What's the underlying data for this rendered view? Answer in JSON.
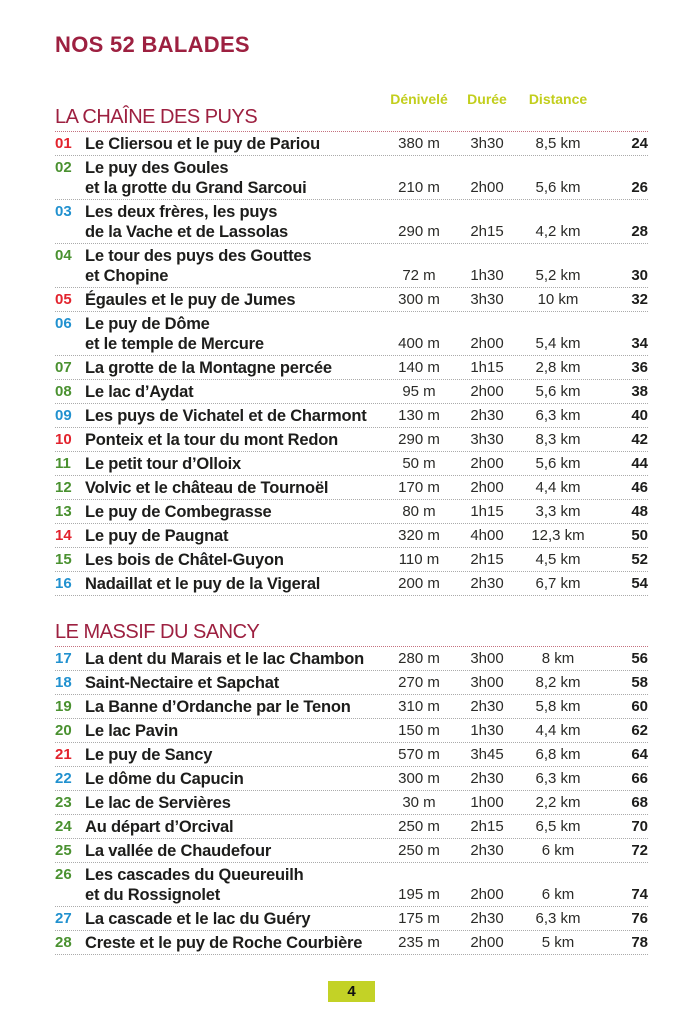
{
  "page": {
    "title": "NOS 52 BALADES",
    "footer_page_number": "4"
  },
  "columns": {
    "denivele": "Dénivelé",
    "duree": "Durée",
    "distance": "Distance"
  },
  "colors": {
    "maroon": "#9D2040",
    "lime": "#C2CE1C",
    "badge_bg": "#C3D226",
    "red": "#E2232D",
    "green": "#4A9130",
    "blue": "#2191CF"
  },
  "sections": [
    {
      "title": "LA CHAÎNE DES PUYS",
      "rows": [
        {
          "num": "01",
          "num_color": "red",
          "title_lines": [
            "Le Cliersou et le puy de Pariou"
          ],
          "denivele": "380 m",
          "duree": "3h30",
          "distance": "8,5 km",
          "page": "24"
        },
        {
          "num": "02",
          "num_color": "green",
          "title_lines": [
            "Le puy des Goules",
            "et la grotte du Grand Sarcoui"
          ],
          "denivele": "210 m",
          "duree": "2h00",
          "distance": "5,6 km",
          "page": "26"
        },
        {
          "num": "03",
          "num_color": "blue",
          "title_lines": [
            "Les deux frères, les puys",
            "de la Vache et de Lassolas"
          ],
          "denivele": "290 m",
          "duree": "2h15",
          "distance": "4,2 km",
          "page": "28"
        },
        {
          "num": "04",
          "num_color": "green",
          "title_lines": [
            "Le tour des puys des Gouttes",
            "et Chopine"
          ],
          "denivele": "72 m",
          "duree": "1h30",
          "distance": "5,2 km",
          "page": "30"
        },
        {
          "num": "05",
          "num_color": "red",
          "title_lines": [
            "Égaules et le puy de Jumes"
          ],
          "denivele": "300 m",
          "duree": "3h30",
          "distance": "10 km",
          "page": "32"
        },
        {
          "num": "06",
          "num_color": "blue",
          "title_lines": [
            "Le puy de Dôme",
            "et le temple de Mercure"
          ],
          "denivele": "400 m",
          "duree": "2h00",
          "distance": "5,4 km",
          "page": "34"
        },
        {
          "num": "07",
          "num_color": "green",
          "title_lines": [
            "La grotte de la Montagne percée"
          ],
          "denivele": "140 m",
          "duree": "1h15",
          "distance": "2,8 km",
          "page": "36"
        },
        {
          "num": "08",
          "num_color": "green",
          "title_lines": [
            "Le lac d’Aydat"
          ],
          "denivele": "95 m",
          "duree": "2h00",
          "distance": "5,6 km",
          "page": "38"
        },
        {
          "num": "09",
          "num_color": "blue",
          "title_lines": [
            "Les puys de Vichatel et de Charmont"
          ],
          "denivele": "130 m",
          "duree": "2h30",
          "distance": "6,3 km",
          "page": "40"
        },
        {
          "num": "10",
          "num_color": "red",
          "title_lines": [
            "Ponteix et la tour du mont Redon"
          ],
          "denivele": "290 m",
          "duree": "3h30",
          "distance": "8,3 km",
          "page": "42"
        },
        {
          "num": "11",
          "num_color": "green",
          "title_lines": [
            "Le petit tour d’Olloix"
          ],
          "denivele": "50 m",
          "duree": "2h00",
          "distance": "5,6 km",
          "page": "44"
        },
        {
          "num": "12",
          "num_color": "green",
          "title_lines": [
            "Volvic et le château de Tournoël"
          ],
          "denivele": "170 m",
          "duree": "2h00",
          "distance": "4,4 km",
          "page": "46"
        },
        {
          "num": "13",
          "num_color": "green",
          "title_lines": [
            "Le puy de Combegrasse"
          ],
          "denivele": "80 m",
          "duree": "1h15",
          "distance": "3,3 km",
          "page": "48"
        },
        {
          "num": "14",
          "num_color": "red",
          "title_lines": [
            "Le puy de Paugnat"
          ],
          "denivele": "320 m",
          "duree": "4h00",
          "distance": "12,3 km",
          "page": "50"
        },
        {
          "num": "15",
          "num_color": "green",
          "title_lines": [
            "Les bois de Châtel-Guyon"
          ],
          "denivele": "110 m",
          "duree": "2h15",
          "distance": "4,5 km",
          "page": "52"
        },
        {
          "num": "16",
          "num_color": "blue",
          "title_lines": [
            "Nadaillat et le puy de la Vigeral"
          ],
          "denivele": "200 m",
          "duree": "2h30",
          "distance": "6,7 km",
          "page": "54"
        }
      ]
    },
    {
      "title": "LE MASSIF DU SANCY",
      "rows": [
        {
          "num": "17",
          "num_color": "blue",
          "title_lines": [
            "La dent du Marais et le lac Chambon"
          ],
          "denivele": "280 m",
          "duree": "3h00",
          "distance": "8 km",
          "page": "56"
        },
        {
          "num": "18",
          "num_color": "blue",
          "title_lines": [
            "Saint-Nectaire et Sapchat"
          ],
          "denivele": "270 m",
          "duree": "3h00",
          "distance": "8,2 km",
          "page": "58"
        },
        {
          "num": "19",
          "num_color": "green",
          "title_lines": [
            "La Banne d’Ordanche par le Tenon"
          ],
          "denivele": "310 m",
          "duree": "2h30",
          "distance": "5,8 km",
          "page": "60"
        },
        {
          "num": "20",
          "num_color": "green",
          "title_lines": [
            "Le lac Pavin"
          ],
          "denivele": "150 m",
          "duree": "1h30",
          "distance": "4,4 km",
          "page": "62"
        },
        {
          "num": "21",
          "num_color": "red",
          "title_lines": [
            "Le puy de Sancy"
          ],
          "denivele": "570 m",
          "duree": "3h45",
          "distance": "6,8 km",
          "page": "64"
        },
        {
          "num": "22",
          "num_color": "blue",
          "title_lines": [
            "Le dôme du Capucin"
          ],
          "denivele": "300 m",
          "duree": "2h30",
          "distance": "6,3 km",
          "page": "66"
        },
        {
          "num": "23",
          "num_color": "green",
          "title_lines": [
            "Le lac de Servières"
          ],
          "denivele": "30 m",
          "duree": "1h00",
          "distance": "2,2 km",
          "page": "68"
        },
        {
          "num": "24",
          "num_color": "green",
          "title_lines": [
            "Au départ d’Orcival"
          ],
          "denivele": "250 m",
          "duree": "2h15",
          "distance": "6,5 km",
          "page": "70"
        },
        {
          "num": "25",
          "num_color": "green",
          "title_lines": [
            "La vallée de Chaudefour"
          ],
          "denivele": "250 m",
          "duree": "2h30",
          "distance": "6 km",
          "page": "72"
        },
        {
          "num": "26",
          "num_color": "green",
          "title_lines": [
            "Les cascades du Queureuilh",
            "et du Rossignolet"
          ],
          "denivele": "195 m",
          "duree": "2h00",
          "distance": "6 km",
          "page": "74"
        },
        {
          "num": "27",
          "num_color": "blue",
          "title_lines": [
            "La cascade et le lac du Guéry"
          ],
          "denivele": "175 m",
          "duree": "2h30",
          "distance": "6,3 km",
          "page": "76"
        },
        {
          "num": "28",
          "num_color": "green",
          "title_lines": [
            "Creste et le puy de Roche Courbière"
          ],
          "denivele": "235 m",
          "duree": "2h00",
          "distance": "5 km",
          "page": "78"
        }
      ]
    }
  ]
}
